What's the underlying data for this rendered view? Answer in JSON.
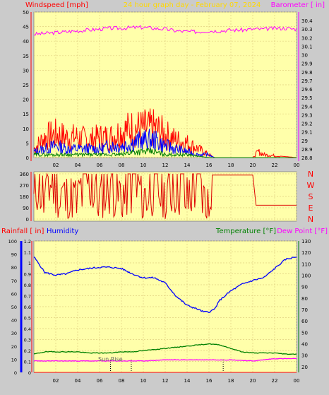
{
  "header": {
    "left": "Windspeed [mph]",
    "center": "24 hour graph day - February 07, 2024",
    "right": "Barometer [ in]"
  },
  "colors": {
    "background": "#cbcbcb",
    "plot_bg": "#ffffaa",
    "grid": "#e0d080",
    "axis_red": "#ff0000",
    "gust": "#ff0000",
    "wind": "#0000ff",
    "wind_low": "#008000",
    "barometer": "#ff00ff",
    "direction": "#dd0000",
    "humidity": "#0000ff",
    "temperature": "#008000",
    "dewpoint": "#ff00ff",
    "header_left": "#ff0000",
    "header_center": "#ffd800",
    "header_right": "#ff00ff"
  },
  "chart_data": [
    {
      "type": "area",
      "panel": "wind-barometer",
      "title": "24 hour graph day - February 07, 2024",
      "x_ticks": [
        "02",
        "04",
        "06",
        "08",
        "10",
        "12",
        "14",
        "16",
        "18",
        "20",
        "22",
        "00"
      ],
      "y_left": {
        "label": "Windspeed [mph]",
        "ylim": [
          0,
          50
        ],
        "ticks": [
          "0",
          "5",
          "10",
          "15",
          "20",
          "25",
          "30",
          "35",
          "40",
          "45",
          "50"
        ]
      },
      "y_right": {
        "label": "Barometer [ in]",
        "ylim": [
          28.8,
          30.5
        ],
        "ticks": [
          "28.8",
          "28.9",
          "29",
          "29.1",
          "29.2",
          "29.3",
          "29.4",
          "29.5",
          "29.6",
          "29.7",
          "29.8",
          "29.9",
          "30",
          "30.1",
          "30.2",
          "30.3",
          "30.4"
        ]
      },
      "series": [
        {
          "key": "gust",
          "x": [
            0.0,
            1.0,
            2.0,
            3.0,
            4.0,
            5.0,
            6.0,
            7.0,
            8.0,
            9.0,
            10.0,
            11.0,
            12.0,
            13.0,
            14.0,
            15.0,
            16.0,
            16.5,
            17.0,
            20.0,
            20.5,
            21.0,
            24.0
          ],
          "values": [
            3,
            7,
            8,
            7,
            7,
            6,
            7,
            7,
            9,
            10,
            10,
            10,
            8,
            6,
            5,
            3,
            1,
            0,
            0,
            0,
            2,
            1,
            0
          ]
        },
        {
          "key": "wind",
          "x": [
            0.0,
            1.0,
            2.0,
            3.0,
            4.0,
            5.0,
            6.0,
            7.0,
            8.0,
            9.0,
            10.0,
            11.0,
            12.0,
            13.0,
            14.0,
            15.0,
            16.0,
            16.5,
            17.0,
            24.0
          ],
          "values": [
            2,
            3,
            4,
            3,
            3,
            3,
            3,
            4,
            4,
            5,
            6,
            6,
            4,
            3,
            2,
            1,
            1,
            0,
            0,
            0
          ]
        },
        {
          "key": "wind_low",
          "x": [
            0.0,
            2.0,
            4.0,
            6.0,
            8.0,
            9.0,
            10.0,
            11.0,
            12.0,
            13.0,
            14.0,
            16.0,
            24.0
          ],
          "values": [
            1,
            1,
            1,
            1,
            1,
            2,
            2,
            2,
            1,
            1,
            1,
            0,
            0
          ]
        },
        {
          "key": "barometer",
          "x": [
            0.0,
            1.0,
            2.0,
            3.0,
            4.0,
            5.0,
            6.0,
            7.0,
            8.0,
            9.0,
            10.0,
            11.0,
            12.0,
            13.0,
            14.0,
            15.0,
            16.0,
            17.0,
            18.0,
            19.0,
            20.0,
            21.0,
            22.0,
            23.0,
            24.0
          ],
          "values": [
            30.24,
            30.25,
            30.26,
            30.27,
            30.28,
            30.29,
            30.3,
            30.31,
            30.31,
            30.32,
            30.32,
            30.31,
            30.3,
            30.28,
            30.27,
            30.27,
            30.28,
            30.28,
            30.29,
            30.29,
            30.3,
            30.3,
            30.31,
            30.31,
            30.3
          ]
        }
      ]
    },
    {
      "type": "line",
      "panel": "wind-direction",
      "ylim": [
        0,
        360
      ],
      "y_ticks": [
        "0",
        "90",
        "180",
        "270",
        "360"
      ],
      "compass": [
        "N",
        "W",
        "S",
        "E",
        "N"
      ],
      "series": [
        {
          "key": "direction",
          "x": [
            0.0,
            0.3,
            1.0,
            1.5,
            2.5,
            3.5,
            4.0,
            5.0,
            6.0,
            7.0,
            8.0,
            9.0,
            10.0,
            11.0,
            12.0,
            13.0,
            14.0,
            15.0,
            15.5,
            16.0,
            16.2,
            16.5,
            20.0,
            20.3,
            24.0
          ],
          "values": [
            20,
            350,
            30,
            300,
            90,
            80,
            60,
            320,
            40,
            340,
            60,
            300,
            30,
            330,
            50,
            310,
            80,
            330,
            60,
            20,
            350,
            350,
            350,
            110,
            110
          ]
        }
      ]
    },
    {
      "type": "line",
      "panel": "rain-humidity-temperature",
      "legend": [
        "Rainfall [ in]",
        "Humidity",
        "Temperature [°F]",
        "Dew Point [°F]"
      ],
      "annotation": "Sun Rise",
      "x_ticks": [
        "02",
        "04",
        "06",
        "08",
        "10",
        "12",
        "14",
        "16",
        "18",
        "20",
        "22",
        "00"
      ],
      "rain_axis": {
        "ylim": [
          0,
          1.2
        ],
        "ticks": [
          "0",
          "0.1",
          "0.2",
          "0.3",
          "0.4",
          "0.5",
          "0.6",
          "0.7",
          "0.8",
          "0.9",
          "1",
          "1.1",
          "1.2"
        ]
      },
      "humidity_axis": {
        "ylim": [
          0,
          100
        ],
        "ticks": [
          "0",
          "10",
          "20",
          "30",
          "40",
          "50",
          "60",
          "70",
          "80",
          "90",
          "100"
        ]
      },
      "temp_axis": {
        "ylim": [
          15,
          130
        ],
        "ticks": [
          "20",
          "30",
          "40",
          "50",
          "60",
          "70",
          "80",
          "90",
          "100",
          "110",
          "120",
          "130"
        ]
      },
      "series": [
        {
          "key": "humidity",
          "x": [
            0.0,
            0.5,
            1.0,
            2.0,
            3.0,
            4.0,
            5.0,
            6.0,
            7.0,
            8.0,
            9.0,
            10.0,
            11.0,
            12.0,
            13.0,
            14.0,
            15.0,
            15.5,
            16.0,
            16.5,
            17.0,
            18.0,
            19.0,
            20.0,
            21.0,
            22.0,
            23.0,
            24.0
          ],
          "values": [
            88,
            82,
            76,
            74,
            75,
            78,
            79,
            80,
            80,
            79,
            75,
            72,
            72,
            68,
            58,
            51,
            48,
            46,
            46,
            48,
            55,
            62,
            67,
            70,
            72,
            79,
            86,
            88
          ]
        },
        {
          "key": "temperature",
          "x": [
            0.0,
            1.0,
            2.0,
            3.0,
            4.0,
            5.0,
            6.0,
            7.0,
            8.0,
            9.0,
            10.0,
            11.0,
            12.0,
            13.0,
            14.0,
            15.0,
            16.0,
            17.0,
            18.0,
            19.0,
            20.0,
            21.0,
            22.0,
            23.0,
            24.0
          ],
          "values": [
            31,
            33,
            33,
            33,
            33,
            32,
            32,
            32,
            33,
            33,
            34,
            35,
            36,
            37,
            38,
            39,
            40,
            39,
            36,
            33,
            32,
            32,
            32,
            31,
            31
          ]
        },
        {
          "key": "dewpoint",
          "x": [
            0.0,
            2.0,
            4.0,
            6.0,
            8.0,
            10.0,
            12.0,
            14.0,
            16.0,
            18.0,
            20.0,
            22.0,
            23.0,
            24.0
          ],
          "values": [
            25,
            25,
            25,
            25,
            25,
            25,
            26,
            26,
            26,
            26,
            25,
            27,
            27,
            27
          ]
        },
        {
          "key": "rainfall",
          "x": [
            0.0,
            24.0
          ],
          "values": [
            0,
            0
          ]
        }
      ],
      "sun_events_hours": [
        7.0,
        8.9,
        17.3
      ]
    }
  ]
}
